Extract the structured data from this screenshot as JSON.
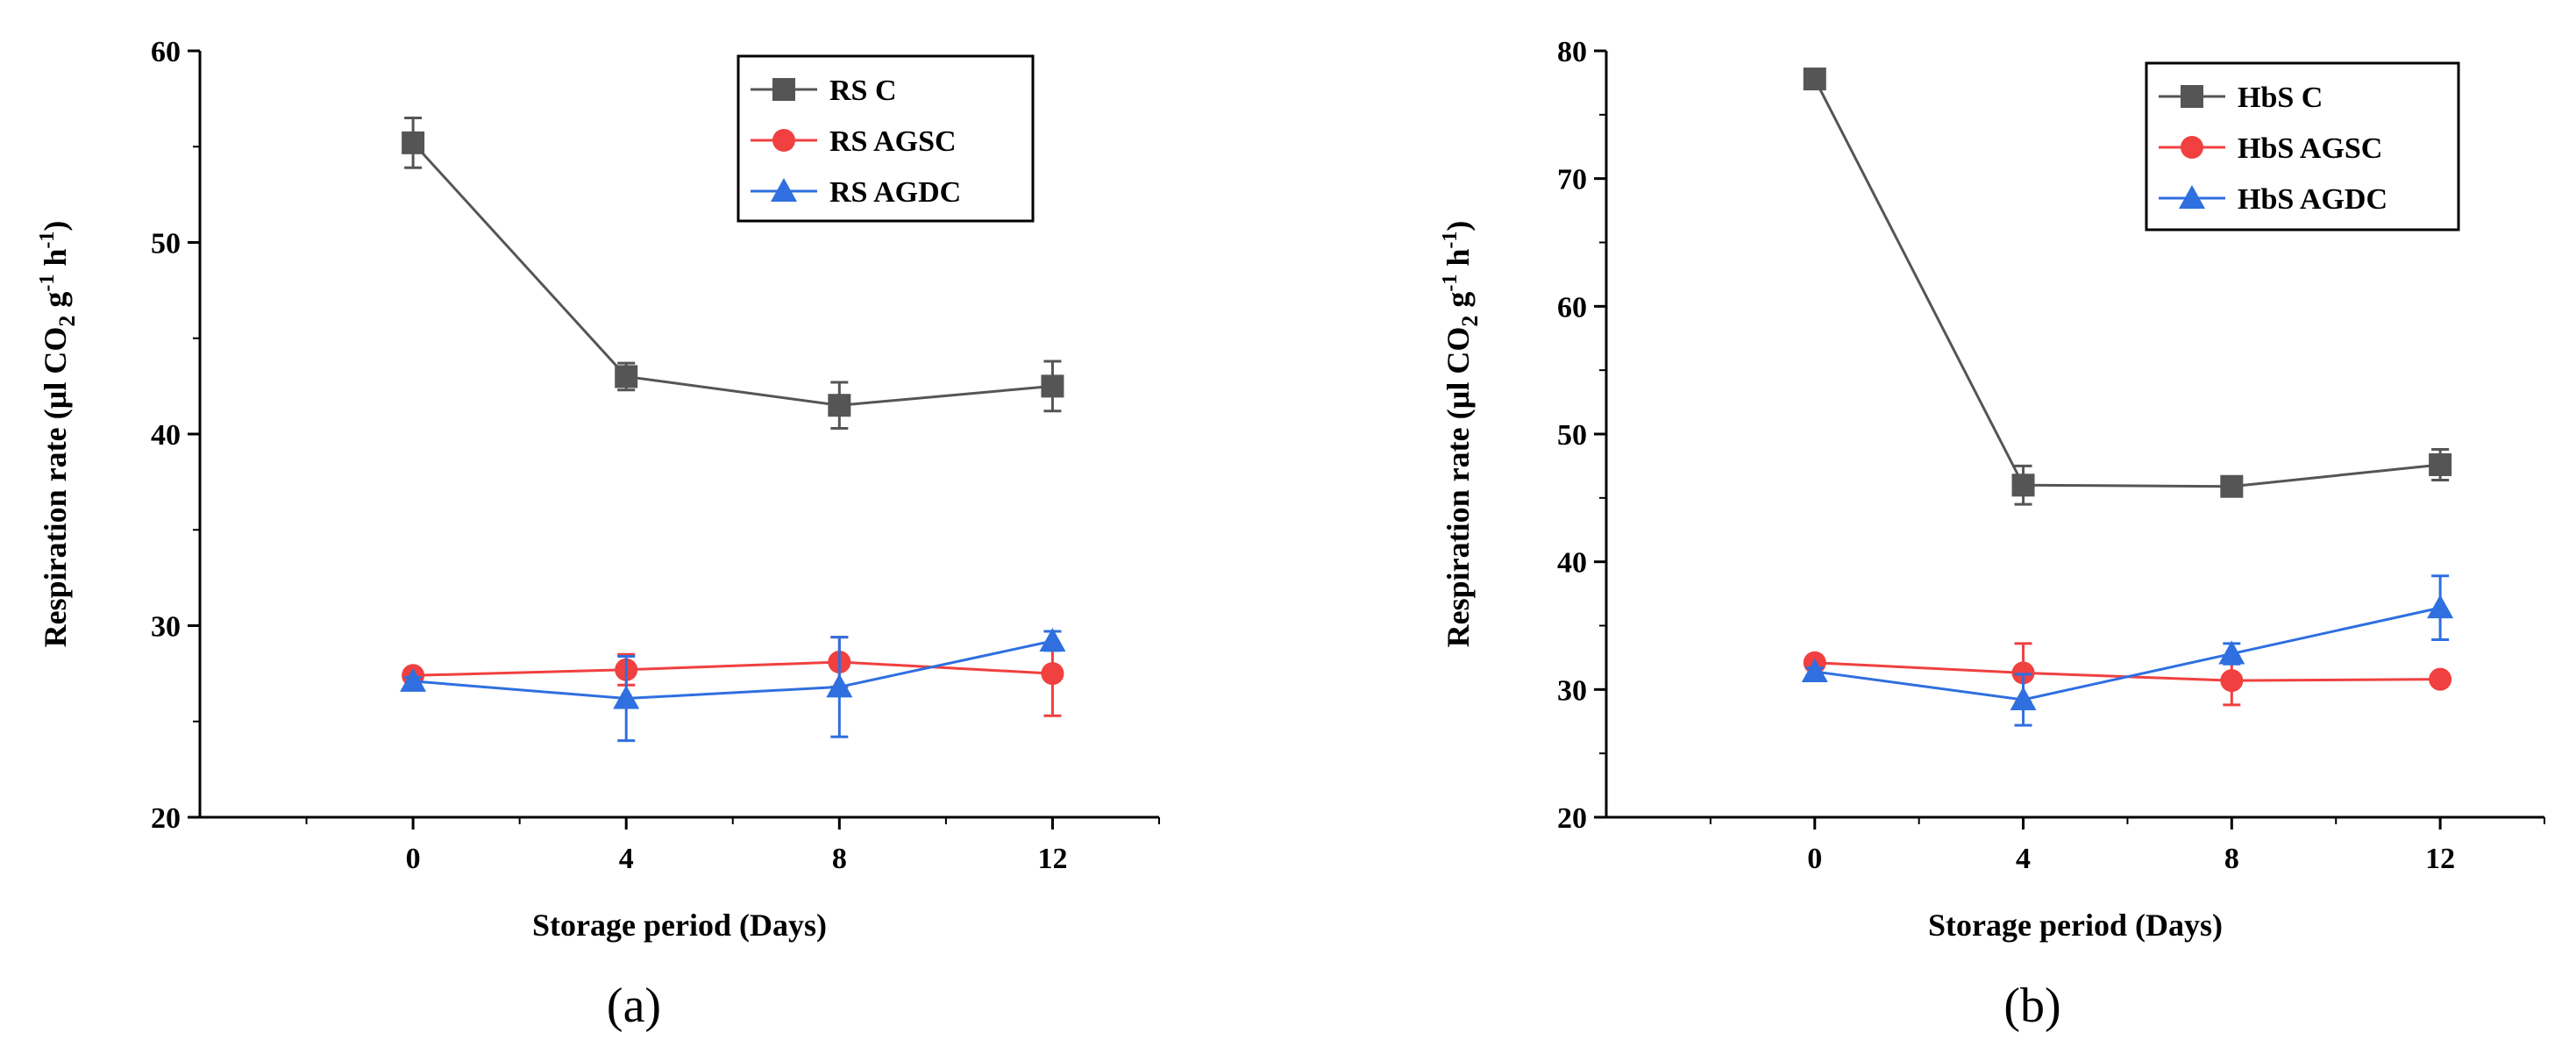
{
  "chart_data": [
    {
      "type": "line",
      "panel_label": "(a)",
      "xlabel": "Storage period (Days)",
      "ylabel": "Respiration rate (µl CO₂ g⁻¹ h⁻¹)",
      "ylabel_parts": {
        "main": "Respiration rate (µl CO",
        "sub": "2",
        "mid": " g",
        "sup1": "-1",
        "h": " h",
        "sup2": "-1",
        "end": ")"
      },
      "x": [
        0,
        4,
        8,
        12
      ],
      "xlim": [
        -4,
        14
      ],
      "ylim": [
        20,
        60
      ],
      "yticks": [
        20,
        30,
        40,
        50,
        60
      ],
      "xticks": [
        0,
        4,
        8,
        12
      ],
      "legend_position": "top-right",
      "series": [
        {
          "name": "RS C",
          "color": "#555555",
          "marker": "square",
          "values": [
            55.2,
            43.0,
            41.5,
            42.5
          ],
          "errors": [
            1.3,
            0.7,
            1.2,
            1.3
          ]
        },
        {
          "name": "RS AGSC",
          "color": "#f04040",
          "marker": "circle",
          "values": [
            27.4,
            27.7,
            28.1,
            27.5
          ],
          "errors": [
            0.2,
            0.8,
            1.3,
            2.2
          ]
        },
        {
          "name": "RS AGDC",
          "color": "#2f6fdf",
          "marker": "triangle",
          "values": [
            27.1,
            26.2,
            26.8,
            29.2
          ],
          "errors": [
            0.2,
            2.2,
            2.6,
            0.5
          ]
        }
      ]
    },
    {
      "type": "line",
      "panel_label": "(b)",
      "xlabel": "Storage period (Days)",
      "ylabel": "Respiration rate (µl CO₂ g⁻¹ h⁻¹)",
      "ylabel_parts": {
        "main": "Respiration rate (µl CO",
        "sub": "2",
        "mid": " g",
        "sup1": "-1",
        "h": " h",
        "sup2": "-1",
        "end": ")"
      },
      "x": [
        0,
        4,
        8,
        12
      ],
      "xlim": [
        -4,
        14
      ],
      "ylim": [
        20,
        80
      ],
      "yticks": [
        20,
        30,
        40,
        50,
        60,
        70,
        80
      ],
      "xticks": [
        0,
        4,
        8,
        12
      ],
      "legend_position": "top-right",
      "series": [
        {
          "name": "HbS C",
          "color": "#555555",
          "marker": "square",
          "values": [
            77.8,
            46.0,
            45.9,
            47.6
          ],
          "errors": [
            0.3,
            1.5,
            0.7,
            1.2
          ]
        },
        {
          "name": "HbS AGSC",
          "color": "#f04040",
          "marker": "circle",
          "values": [
            32.1,
            31.3,
            30.7,
            30.8
          ],
          "errors": [
            0.3,
            2.3,
            1.9,
            0.3
          ]
        },
        {
          "name": "HbS AGDC",
          "color": "#2f6fdf",
          "marker": "triangle",
          "values": [
            31.4,
            29.2,
            32.8,
            36.4
          ],
          "errors": [
            0.3,
            2.0,
            0.8,
            2.5
          ]
        }
      ]
    }
  ]
}
